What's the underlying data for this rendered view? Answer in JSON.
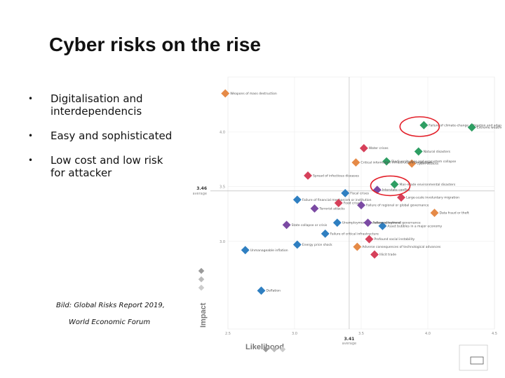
{
  "slide": {
    "title": "Cyber risks on the rise",
    "bullets": [
      {
        "line1": "Digitalisation and",
        "line2": "interdependencis"
      },
      {
        "line1": "Easy and sophisticated",
        "line2": ""
      },
      {
        "line1": "Low cost and low risk",
        "line2": "for attacker"
      }
    ],
    "caption_line1": "Bild: Global Risks Report 2019,",
    "caption_line2": "World Economic Forum"
  },
  "chart_data": {
    "type": "scatter",
    "xlabel": "Likelihood",
    "ylabel": "Impact",
    "xlim": [
      2.5,
      4.5
    ],
    "ylim": [
      2.2,
      4.5
    ],
    "x_ticks": [
      "2.5",
      "3.0",
      "3.5",
      "4.0",
      "4.5"
    ],
    "y_ticks": [
      "3.0",
      "3.5",
      "4.0"
    ],
    "x_average": 3.41,
    "y_average": 3.46,
    "x_average_label": "3.41",
    "y_average_label": "3.46",
    "average_word": "average",
    "colors": {
      "economic": "#2f7fc1",
      "environmental": "#2e9e63",
      "geopolitical": "#7b4aa3",
      "societal": "#d6405a",
      "technological": "#e58a47",
      "highlight": "#e3202a"
    },
    "points": [
      {
        "label": "Weapons of mass destruction",
        "x": 2.48,
        "y": 4.35,
        "cat": "technological"
      },
      {
        "label": "Failure of climate-change mitigation and adaptation",
        "x": 3.97,
        "y": 4.06,
        "cat": "environmental"
      },
      {
        "label": "Extreme weather events",
        "x": 4.33,
        "y": 4.04,
        "cat": "environmental"
      },
      {
        "label": "Natural disasters",
        "x": 3.93,
        "y": 3.82,
        "cat": "environmental"
      },
      {
        "label": "Water crises",
        "x": 3.52,
        "y": 3.85,
        "cat": "societal"
      },
      {
        "label": "Cyber-attacks",
        "x": 3.88,
        "y": 3.71,
        "cat": "technological"
      },
      {
        "label": "Biodiversity loss and ecosystem collapse",
        "x": 3.69,
        "y": 3.73,
        "cat": "environmental"
      },
      {
        "label": "Critical information infrastructure breakdown",
        "x": 3.46,
        "y": 3.72,
        "cat": "technological"
      },
      {
        "label": "Spread of infectious diseases",
        "x": 3.1,
        "y": 3.6,
        "cat": "societal"
      },
      {
        "label": "Man-made environmental disasters",
        "x": 3.75,
        "y": 3.52,
        "cat": "environmental"
      },
      {
        "label": "Interstate conflict",
        "x": 3.62,
        "y": 3.47,
        "cat": "geopolitical"
      },
      {
        "label": "Fiscal crises",
        "x": 3.38,
        "y": 3.44,
        "cat": "economic"
      },
      {
        "label": "Large-scale involuntary migration",
        "x": 3.8,
        "y": 3.4,
        "cat": "societal"
      },
      {
        "label": "Failure of financial mechanism or institution",
        "x": 3.02,
        "y": 3.38,
        "cat": "economic"
      },
      {
        "label": "Food crises",
        "x": 3.33,
        "y": 3.35,
        "cat": "societal"
      },
      {
        "label": "Failure of regional or global governance",
        "x": 3.5,
        "y": 3.33,
        "cat": "geopolitical"
      },
      {
        "label": "Data fraud or theft",
        "x": 4.05,
        "y": 3.26,
        "cat": "technological"
      },
      {
        "label": "Terrorist attacks",
        "x": 3.15,
        "y": 3.3,
        "cat": "geopolitical"
      },
      {
        "label": "Asset bubbles in a major economy",
        "x": 3.66,
        "y": 3.14,
        "cat": "economic"
      },
      {
        "label": "State collapse or crisis",
        "x": 2.94,
        "y": 3.15,
        "cat": "geopolitical"
      },
      {
        "label": "Unemployment or underemployment",
        "x": 3.32,
        "y": 3.17,
        "cat": "economic"
      },
      {
        "label": "Failure of national governance",
        "x": 3.55,
        "y": 3.17,
        "cat": "geopolitical"
      },
      {
        "label": "Failure of critical infrastructure",
        "x": 3.23,
        "y": 3.07,
        "cat": "economic"
      },
      {
        "label": "Profound social instability",
        "x": 3.56,
        "y": 3.02,
        "cat": "societal"
      },
      {
        "label": "Energy price shock",
        "x": 3.02,
        "y": 2.97,
        "cat": "economic"
      },
      {
        "label": "Adverse consequences of technological advances",
        "x": 3.47,
        "y": 2.95,
        "cat": "technological"
      },
      {
        "label": "Unmanageable inflation",
        "x": 2.63,
        "y": 2.92,
        "cat": "economic"
      },
      {
        "label": "Illicit trade",
        "x": 3.6,
        "y": 2.88,
        "cat": "societal"
      },
      {
        "label": "Deflation",
        "x": 2.75,
        "y": 2.55,
        "cat": "economic"
      }
    ],
    "visible_point_labels": [
      "Weapons of mass destruction",
      "Failure of climate-change mitigation and adaptation",
      "Extreme weather events",
      "Natural disasters",
      "Water crises",
      "Cyber-attacks",
      "Biodiversity loss and ecosystem collapse",
      "Critical information infrastructure breakdown",
      "Spread of infectious diseases",
      "Man-made environmental disasters",
      "Interstate conflict",
      "Fiscal crises",
      "Large-scale involuntary migration",
      "Failure of financial mechanism or institution",
      "Food crises",
      "Failure of regional or global governance",
      "Data fraud or theft",
      "Terrorist attacks",
      "Asset bubbles in a major economy",
      "State collapse or crisis",
      "Unemployment or underemployment",
      "Failure of national governance",
      "Failure of critical infrastructure",
      "Profound social instability",
      "Energy price shock",
      "Adverse consequences of technological advances",
      "Unmanageable inflation",
      "Illicit trade",
      "Deflation"
    ],
    "highlighted": [
      "Failure of climate-change mitigation and adaptation",
      "Man-made environmental disasters"
    ]
  }
}
